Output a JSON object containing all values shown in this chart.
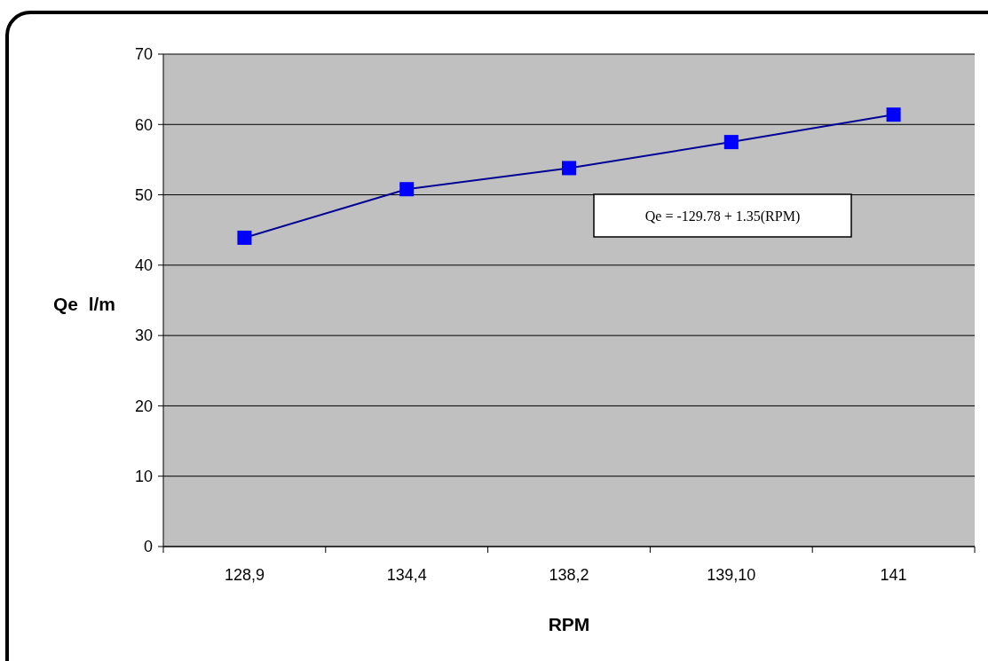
{
  "chart_data": {
    "type": "line",
    "xlabel": "RPM",
    "ylabel": "Qe  l/m",
    "categories": [
      "128,9",
      "134,4",
      "138,2",
      "139,10",
      "141"
    ],
    "series": [
      {
        "color": "#0000ff",
        "values": [
          43.9,
          50.8,
          53.8,
          57.5,
          61.4
        ]
      }
    ],
    "ylim": [
      0,
      70
    ],
    "yticks": [
      0,
      10,
      20,
      30,
      40,
      50,
      60,
      70
    ],
    "grid": "y",
    "marker": "square",
    "annotations": [
      "Qe = -129.78 + 1.35(RPM)"
    ]
  }
}
